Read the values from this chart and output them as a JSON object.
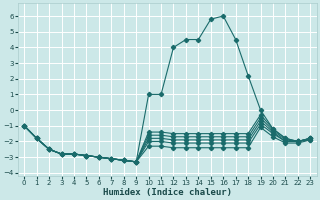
{
  "xlabel": "Humidex (Indice chaleur)",
  "xlim": [
    -0.5,
    23.5
  ],
  "ylim": [
    -4.2,
    6.8
  ],
  "yticks": [
    -4,
    -3,
    -2,
    -1,
    0,
    1,
    2,
    3,
    4,
    5,
    6
  ],
  "xticks": [
    0,
    1,
    2,
    3,
    4,
    5,
    6,
    7,
    8,
    9,
    10,
    11,
    12,
    13,
    14,
    15,
    16,
    17,
    18,
    19,
    20,
    21,
    22,
    23
  ],
  "background_color": "#cce8e8",
  "grid_color": "#ffffff",
  "line_color": "#1a6b6b",
  "lines": [
    {
      "x": [
        0,
        1,
        2,
        3,
        4,
        5,
        6,
        7,
        8,
        9,
        10,
        11,
        12,
        13,
        14,
        15,
        16,
        17,
        18,
        19,
        20,
        21,
        22,
        23
      ],
      "y": [
        -1.0,
        -1.8,
        -2.5,
        -2.8,
        -2.8,
        -2.9,
        -3.0,
        -3.1,
        -3.2,
        -3.3,
        1.0,
        1.0,
        4.0,
        4.5,
        4.5,
        5.8,
        6.0,
        4.5,
        2.2,
        0.0,
        -1.2,
        -1.8,
        -2.0,
        -1.8
      ]
    },
    {
      "x": [
        0,
        1,
        2,
        3,
        4,
        5,
        6,
        7,
        8,
        9,
        10,
        11,
        12,
        13,
        14,
        15,
        16,
        17,
        18,
        19,
        20,
        21,
        22,
        23
      ],
      "y": [
        -1.0,
        -1.8,
        -2.5,
        -2.8,
        -2.8,
        -2.9,
        -3.0,
        -3.1,
        -3.2,
        -3.3,
        -1.4,
        -1.4,
        -1.5,
        -1.5,
        -1.5,
        -1.5,
        -1.5,
        -1.5,
        -1.5,
        -0.3,
        -1.2,
        -1.8,
        -2.0,
        -1.8
      ]
    },
    {
      "x": [
        0,
        1,
        2,
        3,
        4,
        5,
        6,
        7,
        8,
        9,
        10,
        11,
        12,
        13,
        14,
        15,
        16,
        17,
        18,
        19,
        20,
        21,
        22,
        23
      ],
      "y": [
        -1.0,
        -1.8,
        -2.5,
        -2.8,
        -2.8,
        -2.9,
        -3.0,
        -3.1,
        -3.2,
        -3.3,
        -1.6,
        -1.6,
        -1.7,
        -1.7,
        -1.7,
        -1.7,
        -1.7,
        -1.7,
        -1.7,
        -0.5,
        -1.3,
        -1.9,
        -2.0,
        -1.8
      ]
    },
    {
      "x": [
        0,
        1,
        2,
        3,
        4,
        5,
        6,
        7,
        8,
        9,
        10,
        11,
        12,
        13,
        14,
        15,
        16,
        17,
        18,
        19,
        20,
        21,
        22,
        23
      ],
      "y": [
        -1.0,
        -1.8,
        -2.5,
        -2.8,
        -2.8,
        -2.9,
        -3.0,
        -3.1,
        -3.2,
        -3.3,
        -1.8,
        -1.8,
        -1.9,
        -1.9,
        -1.9,
        -1.9,
        -1.9,
        -1.9,
        -1.9,
        -0.7,
        -1.4,
        -2.0,
        -2.0,
        -1.8
      ]
    },
    {
      "x": [
        0,
        1,
        2,
        3,
        4,
        5,
        6,
        7,
        8,
        9,
        10,
        11,
        12,
        13,
        14,
        15,
        16,
        17,
        18,
        19,
        20,
        21,
        22,
        23
      ],
      "y": [
        -1.0,
        -1.8,
        -2.5,
        -2.8,
        -2.8,
        -2.9,
        -3.0,
        -3.1,
        -3.2,
        -3.3,
        -2.0,
        -2.0,
        -2.1,
        -2.1,
        -2.1,
        -2.1,
        -2.1,
        -2.1,
        -2.1,
        -0.9,
        -1.5,
        -2.0,
        -2.0,
        -1.9
      ]
    },
    {
      "x": [
        0,
        1,
        2,
        3,
        4,
        5,
        6,
        7,
        8,
        9,
        10,
        11,
        12,
        13,
        14,
        15,
        16,
        17,
        18,
        19,
        20,
        21,
        22,
        23
      ],
      "y": [
        -1.0,
        -1.8,
        -2.5,
        -2.8,
        -2.8,
        -2.9,
        -3.0,
        -3.1,
        -3.2,
        -3.3,
        -2.3,
        -2.3,
        -2.4,
        -2.4,
        -2.4,
        -2.4,
        -2.4,
        -2.4,
        -2.4,
        -1.1,
        -1.7,
        -2.1,
        -2.1,
        -1.9
      ]
    }
  ]
}
